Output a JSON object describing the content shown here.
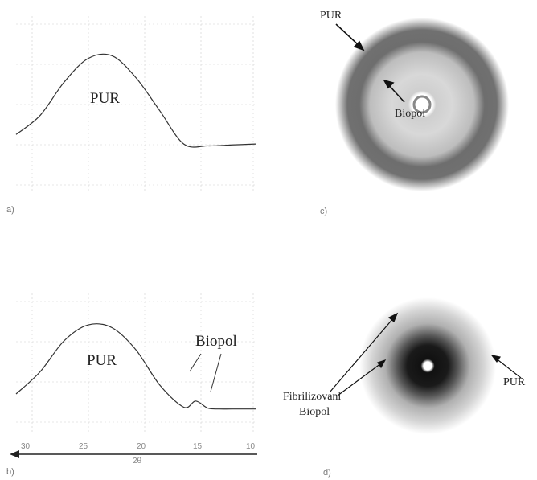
{
  "panels": {
    "a": {
      "label": "a)",
      "curve_label": "PUR"
    },
    "b": {
      "label": "b)",
      "curve_label": "PUR",
      "peak_label": "Biopol",
      "axis_label": "2θ",
      "ticks": [
        "30",
        "25",
        "20",
        "15",
        "10"
      ]
    },
    "c": {
      "label": "c)",
      "outer_label": "PUR",
      "inner_label": "Biopol"
    },
    "d": {
      "label": "d)",
      "fibril_label_line1": "Fibrilizovani",
      "fibril_label_line2": "Biopol",
      "outer_label": "PUR"
    }
  },
  "chart_data": [
    {
      "type": "line",
      "panel": "a",
      "series": [
        {
          "name": "PUR",
          "x": [
            30,
            28,
            26,
            24,
            22,
            20,
            18,
            16,
            14,
            12,
            10
          ],
          "values": [
            0.15,
            0.35,
            0.7,
            0.95,
            0.98,
            0.75,
            0.4,
            0.05,
            0.03,
            0.04,
            0.05
          ]
        }
      ]
    },
    {
      "type": "line",
      "panel": "b",
      "xlabel": "2θ",
      "xlim": [
        30,
        10
      ],
      "categories": [
        "30",
        "25",
        "20",
        "15",
        "10"
      ],
      "series": [
        {
          "name": "PUR",
          "x": [
            30,
            28,
            26,
            24,
            22,
            20,
            18,
            16,
            15,
            14,
            13,
            12,
            10
          ],
          "values": [
            0.2,
            0.45,
            0.8,
            0.98,
            0.95,
            0.7,
            0.3,
            0.05,
            0.12,
            0.04,
            0.03,
            0.03,
            0.03
          ]
        }
      ]
    }
  ]
}
